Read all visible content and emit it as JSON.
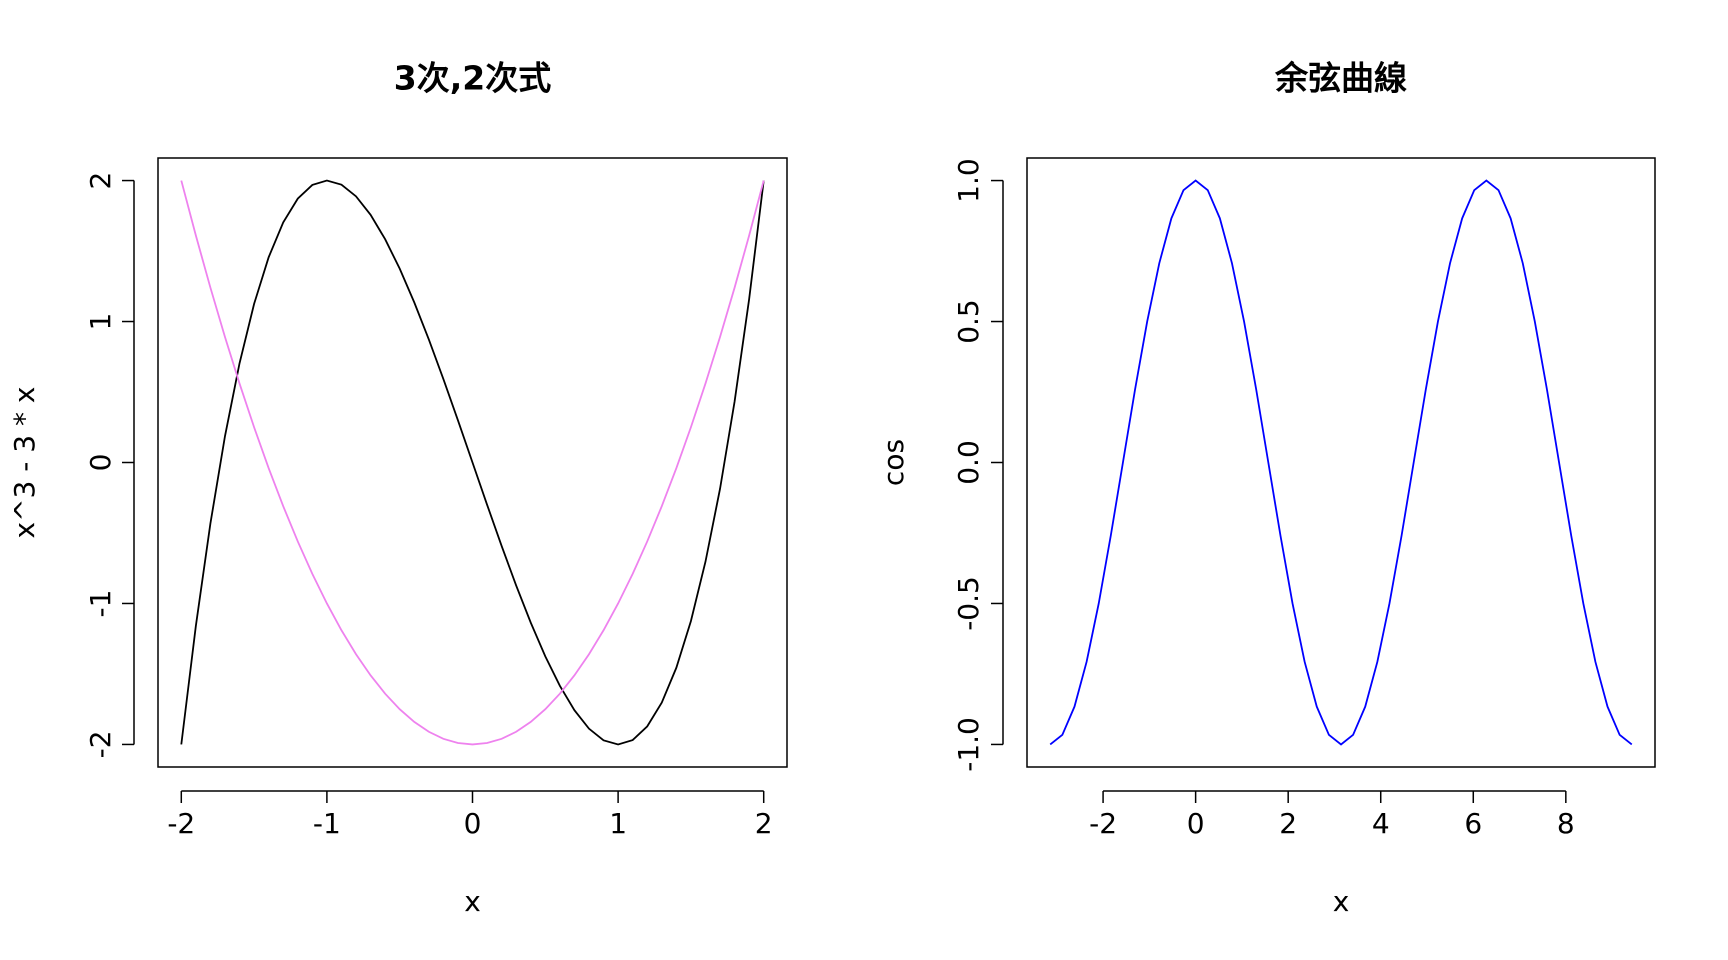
{
  "chart_data": [
    {
      "type": "line",
      "title": "3次,2次式",
      "x_label": "x",
      "y_label": "x^3 - 3 * x",
      "x": [
        -2,
        -1.9,
        -1.8,
        -1.7,
        -1.6,
        -1.5,
        -1.4,
        -1.3,
        -1.2,
        -1.1,
        -1,
        -0.9,
        -0.8,
        -0.7,
        -0.6,
        -0.5,
        -0.4,
        -0.3,
        -0.2,
        -0.1,
        0,
        0.1,
        0.2,
        0.3,
        0.4,
        0.5,
        0.6,
        0.7,
        0.8,
        0.9,
        1,
        1.1,
        1.2,
        1.3,
        1.4,
        1.5,
        1.6,
        1.7,
        1.8,
        1.9,
        2
      ],
      "series": [
        {
          "color": "#000000",
          "values": [
            -2,
            -1.159,
            -0.432,
            0.187,
            0.704,
            1.125,
            1.456,
            1.703,
            1.872,
            1.969,
            2,
            1.971,
            1.888,
            1.757,
            1.584,
            1.375,
            1.136,
            0.873,
            0.592,
            0.299,
            0,
            -0.299,
            -0.592,
            -0.873,
            -1.136,
            -1.375,
            -1.584,
            -1.757,
            -1.888,
            -1.971,
            -2,
            -1.969,
            -1.872,
            -1.703,
            -1.456,
            -1.125,
            -0.704,
            -0.187,
            0.432,
            1.159,
            2
          ]
        },
        {
          "color": "#ee82ee",
          "values": [
            2,
            1.61,
            1.24,
            0.89,
            0.56,
            0.25,
            -0.04,
            -0.31,
            -0.56,
            -0.79,
            -1,
            -1.19,
            -1.36,
            -1.51,
            -1.64,
            -1.75,
            -1.84,
            -1.91,
            -1.96,
            -1.99,
            -2,
            -1.99,
            -1.96,
            -1.91,
            -1.84,
            -1.75,
            -1.64,
            -1.51,
            -1.36,
            -1.19,
            -1,
            -0.79,
            -0.56,
            -0.31,
            -0.04,
            0.25,
            0.56,
            0.89,
            1.24,
            1.61,
            2
          ]
        }
      ],
      "xlim": [
        -2.16,
        2.16
      ],
      "ylim": [
        -2.16,
        2.16
      ],
      "xticks": [
        -2,
        -1,
        0,
        1,
        2
      ],
      "yticks": [
        -2,
        -1,
        0,
        1,
        2
      ]
    },
    {
      "type": "line",
      "title": "余弦曲線",
      "x_label": "x",
      "y_label": "cos",
      "x": [
        -3.142,
        -2.88,
        -2.618,
        -2.356,
        -2.094,
        -1.833,
        -1.571,
        -1.309,
        -1.047,
        -0.785,
        -0.524,
        -0.262,
        0,
        0.262,
        0.524,
        0.785,
        1.047,
        1.309,
        1.571,
        1.833,
        2.094,
        2.356,
        2.618,
        2.88,
        3.142,
        3.403,
        3.665,
        3.927,
        4.189,
        4.451,
        4.712,
        4.974,
        5.236,
        5.498,
        5.76,
        6.021,
        6.283,
        6.545,
        6.807,
        7.069,
        7.33,
        7.592,
        7.854,
        8.116,
        8.378,
        8.639,
        8.901,
        9.163,
        9.425
      ],
      "series": [
        {
          "color": "#0000ff",
          "values": [
            -1,
            -0.966,
            -0.866,
            -0.707,
            -0.5,
            -0.259,
            0,
            0.259,
            0.5,
            0.707,
            0.866,
            0.966,
            1,
            0.966,
            0.866,
            0.707,
            0.5,
            0.259,
            0,
            -0.259,
            -0.5,
            -0.707,
            -0.866,
            -0.966,
            -1,
            -0.966,
            -0.866,
            -0.707,
            -0.5,
            -0.259,
            0,
            0.259,
            0.5,
            0.707,
            0.866,
            0.966,
            1,
            0.966,
            0.866,
            0.707,
            0.5,
            0.259,
            0,
            -0.259,
            -0.5,
            -0.707,
            -0.866,
            -0.966,
            -1
          ]
        }
      ],
      "xlim": [
        -3.644,
        9.927
      ],
      "ylim": [
        -1.08,
        1.08
      ],
      "xticks": [
        -2,
        0,
        2,
        4,
        6,
        8
      ],
      "yticks": [
        {
          "value": -1,
          "label": "-1.0"
        },
        -0.5,
        {
          "value": 0,
          "label": "0.0"
        },
        0.5,
        {
          "value": 1,
          "label": "1.0"
        }
      ]
    }
  ]
}
